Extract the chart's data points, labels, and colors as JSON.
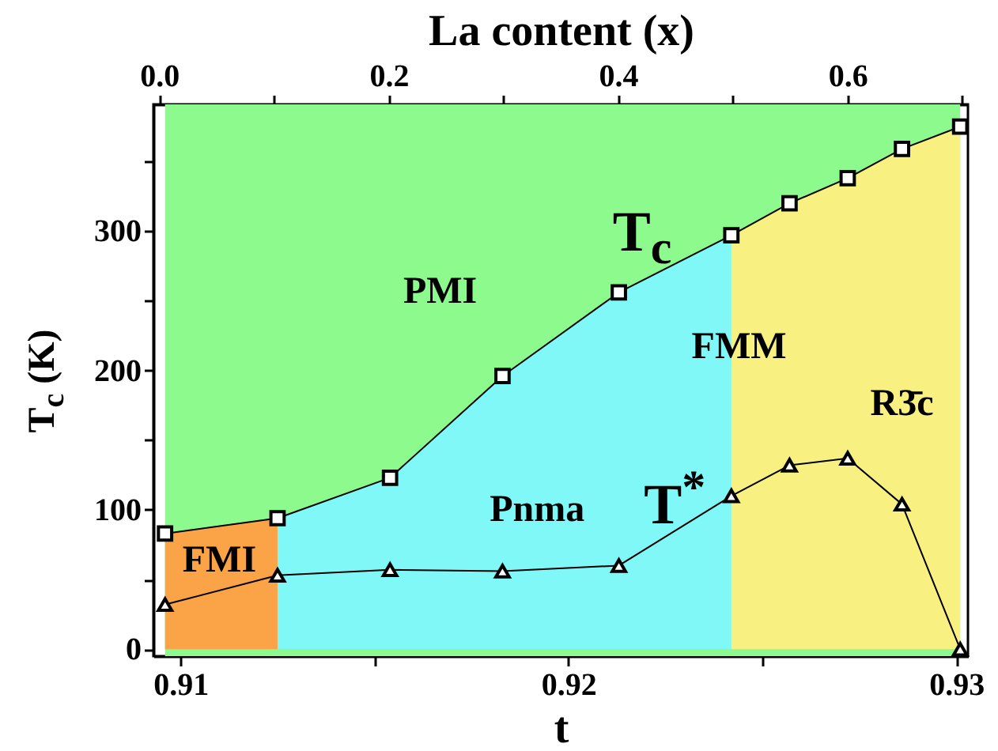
{
  "chart_data": {
    "type": "line",
    "xlabel": "t",
    "ylabel": "T$_{c}$ (K)",
    "x2label": "La content (x)",
    "xlim": [
      0.9093,
      0.9303
    ],
    "xticks": [
      0.91,
      {
        "value": 0.915,
        "label": null
      },
      0.92,
      {
        "value": 0.925,
        "label": null
      },
      0.93
    ],
    "x2lim": [
      -0.005,
      0.705
    ],
    "x2ticks": [
      "0.0",
      {
        "value": 0.1,
        "label": null
      },
      0.2,
      {
        "value": 0.3,
        "label": null
      },
      0.4,
      {
        "value": 0.5,
        "label": null
      },
      0.6,
      {
        "value": 0.7,
        "label": null
      }
    ],
    "ylim": [
      -5,
      391
    ],
    "yticks": [
      0,
      {
        "value": 50,
        "label": null
      },
      100,
      {
        "value": 150,
        "label": null
      },
      200,
      {
        "value": 250,
        "label": null
      },
      300,
      {
        "value": 350,
        "label": null
      }
    ],
    "grid": false,
    "bands": [
      {
        "axis": "x",
        "from": 0.9096,
        "to": 0.9301,
        "color": "#8cfa8c"
      }
    ],
    "series": [
      {
        "type": "area",
        "color": "#fba347",
        "x": [
          0.9096,
          0.9125
        ],
        "values": [
          83,
          94
        ]
      },
      {
        "type": "area",
        "color": "#80f8f8",
        "x": [
          0.9125,
          0.9154,
          0.9183,
          0.9213,
          0.9242
        ],
        "values": [
          94,
          123,
          196,
          256,
          297
        ]
      },
      {
        "type": "area",
        "color": "#f8f080",
        "x": [
          0.9242,
          0.9257,
          0.9272,
          0.9286,
          0.9301
        ],
        "values": [
          297,
          320,
          338,
          359,
          375
        ]
      },
      {
        "color": "#000000",
        "marker": "square",
        "x": [
          0.9096,
          0.9125,
          0.9154,
          0.9183,
          0.9213,
          0.9242,
          0.9257,
          0.9272,
          0.9286,
          0.9301
        ],
        "values": [
          83,
          94,
          123,
          196,
          256,
          297,
          320,
          338,
          359,
          375
        ]
      },
      {
        "color": "#000000",
        "marker": "triangle",
        "x": [
          0.9096,
          0.9125,
          0.9154,
          0.9183,
          0.9213,
          0.9242,
          0.9257,
          0.9272,
          0.9286,
          0.9301
        ],
        "values": [
          32,
          53,
          57,
          56,
          60,
          110,
          132,
          137,
          104,
          0
        ]
      }
    ],
    "annotations": [
      "PMI",
      "FMI",
      "Pnma",
      "FMM",
      "R3̄c",
      "T$_{c}$",
      "T$^{*}$"
    ]
  }
}
